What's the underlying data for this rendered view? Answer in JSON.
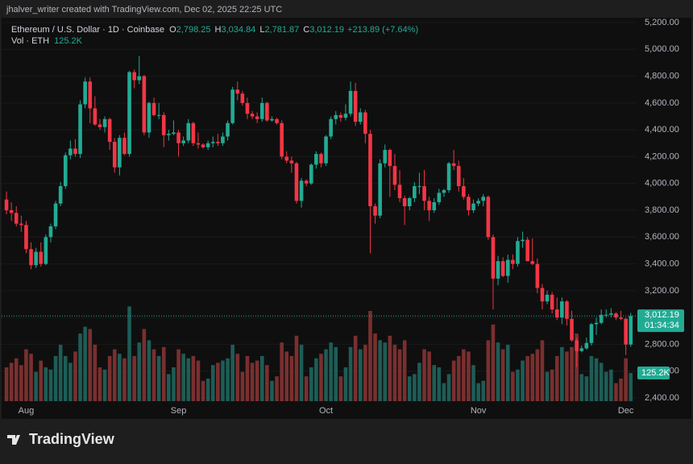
{
  "chart_data": {
    "type": "candlestick",
    "attribution": "jhalver_writer created with TradingView.com, Dec 02, 2025 22:25 UTC",
    "legend": {
      "symbol": "Ethereum / U.S. Dollar · 1D · Coinbase",
      "ohlc": [
        {
          "key": "O",
          "value": "2,798.25"
        },
        {
          "key": "H",
          "value": "3,034.84"
        },
        {
          "key": "L",
          "value": "2,781.87"
        },
        {
          "key": "C",
          "value": "3,012.19"
        }
      ],
      "change": "+213.89 (+7.64%)",
      "volume_title": "Vol · ETH"
    },
    "price_tag": "3,012.19",
    "countdown": "01:34:34",
    "volume_tag": "125.2K",
    "brand": "TradingView",
    "up_color": "#22ab94",
    "down_color": "#f23645",
    "volume_up_color": "#1d5d56",
    "volume_down_color": "#7a2f2f",
    "grid": true,
    "ylim": [
      2376,
      5236
    ],
    "yticks": [
      {
        "value": 5200,
        "label": "5,200.00"
      },
      {
        "value": 5000,
        "label": "5,000.00"
      },
      {
        "value": 4800,
        "label": "4,800.00"
      },
      {
        "value": 4600,
        "label": "4,600.00"
      },
      {
        "value": 4400,
        "label": "4,400.00"
      },
      {
        "value": 4200,
        "label": "4,200.00"
      },
      {
        "value": 4000,
        "label": "4,000.00"
      },
      {
        "value": 3800,
        "label": "3,800.00"
      },
      {
        "value": 3600,
        "label": "3,600.00"
      },
      {
        "value": 3400,
        "label": "3,400.00"
      },
      {
        "value": 3200,
        "label": "3,200.00"
      },
      {
        "value": 3000,
        "label": "3,000.00"
      },
      {
        "value": 2800,
        "label": "2,800.00"
      },
      {
        "value": 2600,
        "label": "2,600.00"
      },
      {
        "value": 2400,
        "label": "2,400.00"
      }
    ],
    "vlim": [
      0,
      1700000
    ],
    "categories": [
      null,
      null,
      null,
      null,
      "Aug",
      null,
      null,
      null,
      null,
      null,
      null,
      null,
      null,
      null,
      null,
      null,
      null,
      null,
      null,
      null,
      null,
      null,
      null,
      null,
      null,
      null,
      null,
      null,
      null,
      null,
      null,
      null,
      null,
      null,
      null,
      "Sep",
      null,
      null,
      null,
      null,
      null,
      null,
      null,
      null,
      null,
      null,
      null,
      null,
      null,
      null,
      null,
      null,
      null,
      null,
      null,
      null,
      null,
      null,
      null,
      null,
      null,
      null,
      null,
      null,
      null,
      "Oct",
      null,
      null,
      null,
      null,
      null,
      null,
      null,
      null,
      null,
      null,
      null,
      null,
      null,
      null,
      null,
      null,
      null,
      null,
      null,
      null,
      null,
      null,
      null,
      null,
      null,
      null,
      null,
      null,
      null,
      null,
      "Nov",
      null,
      null,
      null,
      null,
      null,
      null,
      null,
      null,
      null,
      null,
      null,
      null,
      null,
      null,
      null,
      null,
      null,
      null,
      null,
      null,
      null,
      null,
      null,
      null,
      null,
      null,
      null,
      null,
      null,
      "Dec",
      null
    ],
    "open": [
      3880,
      3800,
      3780,
      3700,
      3690,
      3510,
      3390,
      3490,
      3400,
      3600,
      3680,
      3850,
      3980,
      4210,
      4260,
      4220,
      4590,
      4760,
      4560,
      4440,
      4420,
      4480,
      4310,
      4120,
      4340,
      4220,
      4830,
      4770,
      4800,
      4380,
      4600,
      4510,
      4510,
      4360,
      4370,
      4380,
      4300,
      4320,
      4450,
      4300,
      4290,
      4270,
      4300,
      4310,
      4300,
      4350,
      4450,
      4700,
      4670,
      4600,
      4520,
      4500,
      4480,
      4600,
      4470,
      4480,
      4450,
      4200,
      4170,
      4150,
      3870,
      4020,
      4000,
      4140,
      4220,
      4150,
      4350,
      4480,
      4510,
      4490,
      4520,
      4690,
      4460,
      4530,
      4370,
      3830,
      3760,
      4150,
      4250,
      4130,
      3990,
      3890,
      3830,
      3890,
      3980,
      3980,
      3870,
      3800,
      3860,
      3930,
      3950,
      4150,
      4130,
      3980,
      3900,
      3800,
      3850,
      3870,
      3900,
      3600,
      3290,
      3420,
      3310,
      3430,
      3400,
      3570,
      3580,
      3420,
      3400,
      3220,
      3120,
      3170,
      3060,
      3000,
      3120,
      2990,
      2830,
      2750,
      2770,
      2810,
      2950,
      2960,
      3020,
      3020,
      3030,
      3000,
      2990,
      2798.25
    ],
    "high": [
      3940,
      3860,
      3830,
      3760,
      3720,
      3560,
      3520,
      3560,
      3620,
      3700,
      3870,
      4010,
      4230,
      4320,
      4330,
      4620,
      4790,
      4790,
      4650,
      4480,
      4500,
      4490,
      4340,
      4360,
      4380,
      4840,
      4850,
      4950,
      4810,
      4610,
      4640,
      4600,
      4530,
      4400,
      4470,
      4400,
      4350,
      4480,
      4460,
      4380,
      4300,
      4320,
      4350,
      4370,
      4380,
      4470,
      4720,
      4760,
      4690,
      4640,
      4540,
      4530,
      4640,
      4610,
      4500,
      4490,
      4470,
      4240,
      4200,
      4160,
      4040,
      4030,
      4150,
      4240,
      4230,
      4360,
      4500,
      4540,
      4530,
      4590,
      4760,
      4750,
      4560,
      4550,
      4400,
      3850,
      4180,
      4290,
      4260,
      4220,
      4100,
      3910,
      3900,
      4010,
      4080,
      4100,
      3900,
      3890,
      3960,
      3960,
      4160,
      4250,
      4170,
      4040,
      3920,
      3880,
      3890,
      3920,
      3910,
      3620,
      3460,
      3450,
      3470,
      3470,
      3600,
      3640,
      3600,
      3590,
      3440,
      3250,
      3200,
      3190,
      3150,
      3150,
      3130,
      3050,
      2850,
      2790,
      2850,
      2960,
      3000,
      3060,
      3060,
      3070,
      3040,
      3050,
      3000,
      3034.84
    ],
    "low": [
      3770,
      3720,
      3680,
      3640,
      3480,
      3360,
      3370,
      3380,
      3390,
      3560,
      3660,
      3830,
      3960,
      4180,
      4200,
      4190,
      4560,
      4450,
      4430,
      4400,
      4380,
      4250,
      4080,
      4060,
      4210,
      4200,
      4710,
      4740,
      4360,
      4340,
      4500,
      4480,
      4270,
      4320,
      4360,
      4200,
      4280,
      4300,
      4280,
      4260,
      4260,
      4250,
      4270,
      4280,
      4280,
      4320,
      4440,
      4620,
      4580,
      4480,
      4480,
      4450,
      4460,
      4460,
      4460,
      4440,
      4180,
      4150,
      4080,
      3850,
      3820,
      3980,
      3990,
      4110,
      4120,
      4130,
      4330,
      4440,
      4460,
      4470,
      4500,
      4430,
      4440,
      4300,
      3480,
      3700,
      3740,
      4120,
      3900,
      3950,
      3860,
      3690,
      3800,
      3860,
      3920,
      3800,
      3720,
      3780,
      3840,
      3900,
      3930,
      4100,
      3940,
      3880,
      3760,
      3780,
      3830,
      3830,
      3580,
      3060,
      3240,
      3300,
      3260,
      3360,
      3380,
      3520,
      3420,
      3390,
      3180,
      3060,
      3100,
      3030,
      2980,
      2950,
      2940,
      2820,
      2630,
      2740,
      2760,
      2790,
      2870,
      2950,
      3000,
      3000,
      2980,
      2980,
      2720,
      2781.87
    ],
    "close": [
      3800,
      3780,
      3700,
      3690,
      3510,
      3390,
      3490,
      3400,
      3600,
      3680,
      3850,
      3980,
      4210,
      4260,
      4220,
      4590,
      4760,
      4560,
      4440,
      4420,
      4480,
      4310,
      4120,
      4340,
      4220,
      4830,
      4770,
      4800,
      4380,
      4600,
      4510,
      4510,
      4360,
      4370,
      4380,
      4300,
      4320,
      4450,
      4300,
      4290,
      4270,
      4300,
      4310,
      4300,
      4350,
      4450,
      4700,
      4670,
      4600,
      4520,
      4500,
      4480,
      4600,
      4470,
      4480,
      4450,
      4200,
      4170,
      4150,
      3870,
      4020,
      4000,
      4140,
      4220,
      4150,
      4350,
      4480,
      4510,
      4490,
      4520,
      4690,
      4460,
      4530,
      4370,
      3830,
      3760,
      4150,
      4250,
      4130,
      3990,
      3890,
      3830,
      3890,
      3980,
      3980,
      3870,
      3800,
      3860,
      3930,
      3950,
      4150,
      4130,
      3980,
      3900,
      3800,
      3850,
      3870,
      3900,
      3600,
      3290,
      3420,
      3310,
      3430,
      3400,
      3570,
      3580,
      3420,
      3400,
      3220,
      3120,
      3170,
      3060,
      3000,
      3120,
      2990,
      2830,
      2750,
      2770,
      2810,
      2950,
      2960,
      3020,
      3020,
      3030,
      3000,
      2990,
      2798.36,
      3012.19
    ],
    "volume": [
      150000,
      170000,
      190000,
      160000,
      230000,
      210000,
      130000,
      180000,
      150000,
      140000,
      200000,
      250000,
      200000,
      170000,
      220000,
      300000,
      330000,
      320000,
      250000,
      150000,
      140000,
      200000,
      230000,
      210000,
      190000,
      420000,
      200000,
      260000,
      320000,
      270000,
      230000,
      200000,
      240000,
      120000,
      150000,
      230000,
      210000,
      190000,
      200000,
      180000,
      90000,
      100000,
      160000,
      170000,
      180000,
      190000,
      250000,
      210000,
      130000,
      200000,
      170000,
      180000,
      200000,
      160000,
      90000,
      110000,
      260000,
      220000,
      200000,
      290000,
      250000,
      110000,
      150000,
      190000,
      210000,
      230000,
      260000,
      240000,
      110000,
      150000,
      240000,
      290000,
      230000,
      250000,
      400000,
      300000,
      270000,
      260000,
      290000,
      250000,
      230000,
      270000,
      110000,
      120000,
      170000,
      230000,
      220000,
      160000,
      150000,
      80000,
      120000,
      180000,
      200000,
      230000,
      220000,
      160000,
      80000,
      90000,
      270000,
      340000,
      260000,
      230000,
      250000,
      130000,
      140000,
      180000,
      200000,
      210000,
      230000,
      270000,
      130000,
      140000,
      200000,
      240000,
      220000,
      240000,
      300000,
      120000,
      110000,
      200000,
      190000,
      170000,
      130000,
      140000,
      80000,
      100000,
      190000,
      125200
    ]
  }
}
